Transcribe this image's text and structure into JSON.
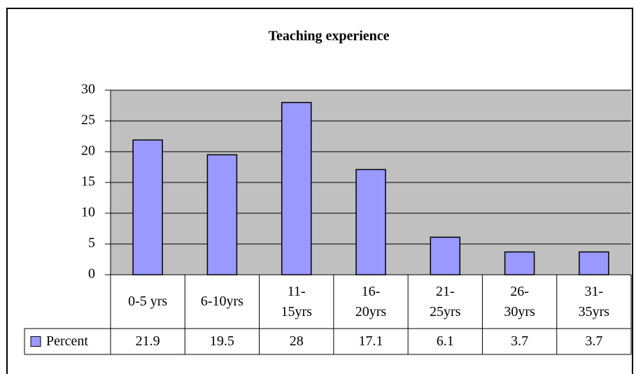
{
  "chart_data": {
    "type": "bar",
    "title": "Teaching experience",
    "categories": [
      "0-5 yrs",
      "6-10yrs",
      "11-\n15yrs",
      "16-\n20yrs",
      "21-\n25yrs",
      "26-\n30yrs",
      "31-\n35yrs"
    ],
    "series": [
      {
        "name": "Percent",
        "color": "#9999ff",
        "values": [
          21.9,
          19.5,
          28,
          17.1,
          6.1,
          3.7,
          3.7
        ]
      }
    ],
    "ylim": [
      0,
      30
    ],
    "yticks": [
      0,
      5,
      10,
      15,
      20,
      25,
      30
    ],
    "grid": true,
    "data_table": true
  }
}
